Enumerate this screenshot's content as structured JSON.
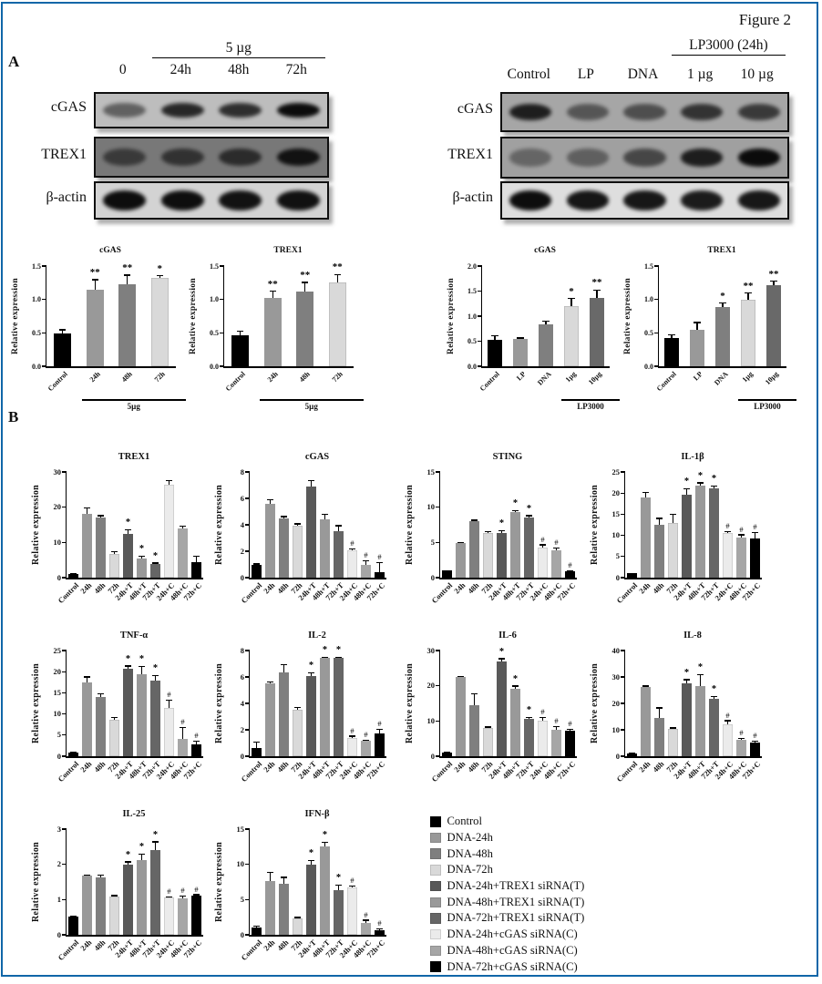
{
  "figure_label": "Figure 2",
  "panel_a": {
    "label": "A",
    "blots": [
      {
        "id": "left",
        "header": {
          "text": "5 µg",
          "span": [
            1,
            3
          ]
        },
        "lanes": [
          "0",
          "24h",
          "48h",
          "72h"
        ],
        "rows": [
          {
            "label": "cGAS",
            "bg": "#bdbdbd",
            "bands": [
              0.5,
              0.82,
              0.78,
              0.97
            ]
          },
          {
            "label": "TREX1",
            "bg": "#787878",
            "bands": [
              0.55,
              0.62,
              0.68,
              0.9
            ]
          },
          {
            "label": "β-actin",
            "bg": "#d3d3d3",
            "bands": [
              0.97,
              0.96,
              0.94,
              0.95
            ]
          }
        ]
      },
      {
        "id": "right",
        "header": {
          "text": "LP3000 (24h)",
          "span": [
            3,
            4
          ]
        },
        "lanes": [
          "Control",
          "LP",
          "DNA",
          "1 µg",
          "10 µg"
        ],
        "rows": [
          {
            "label": "cGAS",
            "bg": "#a6a6a6",
            "bands": [
              0.85,
              0.5,
              0.55,
              0.72,
              0.68
            ]
          },
          {
            "label": "TREX1",
            "bg": "#a0a0a0",
            "bands": [
              0.38,
              0.42,
              0.58,
              0.85,
              0.97
            ]
          },
          {
            "label": "β-actin",
            "bg": "#dedede",
            "bands": [
              0.97,
              0.93,
              0.92,
              0.9,
              0.92
            ]
          }
        ]
      }
    ]
  },
  "panel_b": {
    "label": "B"
  },
  "chart_data": [
    {
      "panel": "A",
      "type": "bar",
      "title": "cGAS",
      "ylabel": "Relative expression",
      "ylim": [
        0,
        1.5
      ],
      "yticks": [
        "0.0",
        "0.5",
        "1.0",
        "1.5"
      ],
      "categories": [
        "Control",
        "24h",
        "48h",
        "72h"
      ],
      "values": [
        0.49,
        1.15,
        1.23,
        1.32
      ],
      "errors": [
        0.06,
        0.15,
        0.14,
        0.04
      ],
      "sig": [
        "",
        "**",
        "**",
        "*"
      ],
      "colors": [
        "#000000",
        "#999999",
        "#7f7f7f",
        "#d9d9d9"
      ],
      "group": {
        "label": "5µg",
        "start": 1,
        "end": 3
      }
    },
    {
      "panel": "A",
      "type": "bar",
      "title": "TREX1",
      "ylabel": "Relative expression",
      "ylim": [
        0,
        1.5
      ],
      "yticks": [
        "0.0",
        "0.5",
        "1.0",
        "1.5"
      ],
      "categories": [
        "Control",
        "24h",
        "48h",
        "72h"
      ],
      "values": [
        0.46,
        1.02,
        1.12,
        1.25
      ],
      "errors": [
        0.07,
        0.11,
        0.14,
        0.13
      ],
      "sig": [
        "",
        "**",
        "**",
        "**"
      ],
      "colors": [
        "#000000",
        "#999999",
        "#7f7f7f",
        "#d9d9d9"
      ],
      "group": {
        "label": "5µg",
        "start": 1,
        "end": 3
      }
    },
    {
      "panel": "A",
      "type": "bar",
      "title": "cGAS",
      "ylabel": "Relative expression",
      "ylim": [
        0,
        2.0
      ],
      "yticks": [
        "0.0",
        "0.5",
        "1.0",
        "1.5",
        "2.0"
      ],
      "categories": [
        "Control",
        "LP",
        "DNA",
        "1µg",
        "10µg"
      ],
      "values": [
        0.53,
        0.55,
        0.84,
        1.2,
        1.37
      ],
      "errors": [
        0.08,
        0.02,
        0.07,
        0.16,
        0.16
      ],
      "sig": [
        "",
        "",
        "",
        "*",
        "**"
      ],
      "colors": [
        "#000000",
        "#999999",
        "#7f7f7f",
        "#d9d9d9",
        "#696969"
      ],
      "group": {
        "label": "LP3000",
        "start": 3,
        "end": 4
      }
    },
    {
      "panel": "A",
      "type": "bar",
      "title": "TREX1",
      "ylabel": "Relative expression",
      "ylim": [
        0,
        1.5
      ],
      "yticks": [
        "0.0",
        "0.5",
        "1.0",
        "1.5"
      ],
      "categories": [
        "Control",
        "LP",
        "DNA",
        "1µg",
        "10µg"
      ],
      "values": [
        0.42,
        0.55,
        0.89,
        1.0,
        1.22
      ],
      "errors": [
        0.06,
        0.11,
        0.06,
        0.1,
        0.06
      ],
      "sig": [
        "",
        "",
        "*",
        "**",
        "**"
      ],
      "colors": [
        "#000000",
        "#999999",
        "#7f7f7f",
        "#d9d9d9",
        "#696969"
      ],
      "group": {
        "label": "LP3000",
        "start": 3,
        "end": 4
      }
    },
    {
      "panel": "B",
      "type": "bar",
      "title": "TREX1",
      "ylabel": "Relative expression",
      "ylim": [
        0,
        30
      ],
      "yticks": [
        "0",
        "10",
        "20",
        "30"
      ],
      "categories": [
        "Control",
        "24h",
        "48h",
        "72h",
        "24h+T",
        "48h+T",
        "72h+T",
        "24h+C",
        "48h+C",
        "72h+C"
      ],
      "values": [
        1,
        18,
        17,
        6.8,
        12.5,
        5.5,
        3.8,
        26.3,
        14,
        4.3
      ],
      "errors": [
        0.2,
        1.8,
        0.7,
        0.6,
        1.2,
        0.6,
        0.4,
        1.3,
        0.7,
        1.9
      ],
      "sig": [
        "",
        "",
        "",
        "",
        "*",
        "*",
        "*",
        "",
        "",
        ""
      ],
      "colors": [
        "#000000",
        "#999999",
        "#7f7f7f",
        "#d9d9d9",
        "#595959",
        "#999999",
        "#666666",
        "#ebebeb",
        "#a6a6a6",
        "#000000"
      ],
      "group": null
    },
    {
      "panel": "B",
      "type": "bar",
      "title": "cGAS",
      "ylabel": "Relative expression",
      "ylim": [
        0,
        8
      ],
      "yticks": [
        "0",
        "2",
        "4",
        "6",
        "8"
      ],
      "categories": [
        "Control",
        "24h",
        "48h",
        "72h",
        "24h+T",
        "48h+T",
        "72h+T",
        "24h+C",
        "48h+C",
        "72h+C"
      ],
      "values": [
        1,
        5.6,
        4.5,
        3.9,
        6.9,
        4.4,
        3.5,
        2.1,
        0.95,
        0.4
      ],
      "errors": [
        0.05,
        0.3,
        0.15,
        0.2,
        0.45,
        0.4,
        0.45,
        0.12,
        0.35,
        0.75
      ],
      "sig": [
        "",
        "",
        "",
        "",
        "",
        "",
        "",
        "#",
        "#",
        "#"
      ],
      "colors": [
        "#000000",
        "#999999",
        "#7f7f7f",
        "#d9d9d9",
        "#595959",
        "#999999",
        "#666666",
        "#ebebeb",
        "#a6a6a6",
        "#000000"
      ],
      "group": null
    },
    {
      "panel": "B",
      "type": "bar",
      "title": "STING",
      "ylabel": "Relative expression",
      "ylim": [
        0,
        15
      ],
      "yticks": [
        "0",
        "5",
        "10",
        "15"
      ],
      "categories": [
        "Control",
        "24h",
        "48h",
        "72h",
        "24h+T",
        "48h+T",
        "72h+T",
        "24h+C",
        "48h+C",
        "72h+C"
      ],
      "values": [
        1,
        4.9,
        8,
        6.4,
        6.4,
        9.3,
        8.5,
        4.3,
        3.9,
        0.9
      ],
      "errors": [
        0.05,
        0.12,
        0.2,
        0.15,
        0.3,
        0.25,
        0.35,
        0.4,
        0.35,
        0.15
      ],
      "sig": [
        "",
        "",
        "",
        "",
        "*",
        "*",
        "*",
        "#",
        "#",
        "#"
      ],
      "colors": [
        "#000000",
        "#999999",
        "#7f7f7f",
        "#d9d9d9",
        "#595959",
        "#999999",
        "#666666",
        "#ebebeb",
        "#a6a6a6",
        "#000000"
      ],
      "group": null
    },
    {
      "panel": "B",
      "type": "bar",
      "title": "IL-1β",
      "ylabel": "Relative expression",
      "ylim": [
        0,
        25
      ],
      "yticks": [
        "0",
        "5",
        "10",
        "15",
        "20",
        "25"
      ],
      "categories": [
        "Control",
        "24h",
        "48h",
        "72h",
        "24h+T",
        "48h+T",
        "72h+T",
        "24h+C",
        "48h+C",
        "72h+C"
      ],
      "values": [
        1,
        19,
        12.6,
        12.9,
        19.6,
        21.8,
        21.1,
        10.6,
        9.5,
        9.2
      ],
      "errors": [
        0.1,
        1.2,
        1.5,
        2.1,
        1.5,
        0.7,
        0.6,
        0.4,
        0.7,
        1.5
      ],
      "sig": [
        "",
        "",
        "",
        "",
        "*",
        "*",
        "*",
        "#",
        "#",
        "#"
      ],
      "colors": [
        "#000000",
        "#999999",
        "#7f7f7f",
        "#d9d9d9",
        "#595959",
        "#999999",
        "#666666",
        "#ebebeb",
        "#a6a6a6",
        "#000000"
      ],
      "group": null
    },
    {
      "panel": "B",
      "type": "bar",
      "title": "TNF-α",
      "ylabel": "Relative expression",
      "ylim": [
        0,
        25
      ],
      "yticks": [
        "0",
        "5",
        "10",
        "15",
        "20",
        "25"
      ],
      "categories": [
        "Control",
        "24h",
        "48h",
        "72h",
        "24h+T",
        "48h+T",
        "72h+T",
        "24h+C",
        "48h+C",
        "72h+C"
      ],
      "values": [
        0.9,
        17.5,
        14.1,
        8.6,
        20.6,
        19.5,
        17.9,
        11.5,
        4.2,
        2.8
      ],
      "errors": [
        0.15,
        1.3,
        0.8,
        0.7,
        0.8,
        1.8,
        1.2,
        1.8,
        2.7,
        0.8
      ],
      "sig": [
        "",
        "",
        "",
        "",
        "*",
        "*",
        "*",
        "#",
        "#",
        "#"
      ],
      "colors": [
        "#000000",
        "#999999",
        "#7f7f7f",
        "#d9d9d9",
        "#595959",
        "#999999",
        "#666666",
        "#ebebeb",
        "#a6a6a6",
        "#000000"
      ],
      "group": null
    },
    {
      "panel": "B",
      "type": "bar",
      "title": "IL-2",
      "ylabel": "Relative expression",
      "ylim": [
        0,
        8
      ],
      "yticks": [
        "0",
        "2",
        "4",
        "6",
        "8"
      ],
      "categories": [
        "Control",
        "24h",
        "48h",
        "72h",
        "24h+T",
        "48h+T",
        "72h+T",
        "24h+C",
        "48h+C",
        "72h+C"
      ],
      "values": [
        0.65,
        5.55,
        6.35,
        3.5,
        6.1,
        7.45,
        7.45,
        1.4,
        1.15,
        1.75
      ],
      "errors": [
        0.45,
        0.1,
        0.6,
        0.2,
        0.25,
        0.08,
        0.08,
        0.15,
        0.1,
        0.3
      ],
      "sig": [
        "",
        "",
        "",
        "",
        "*",
        "*",
        "*",
        "#",
        "#",
        "#"
      ],
      "colors": [
        "#000000",
        "#999999",
        "#7f7f7f",
        "#d9d9d9",
        "#595959",
        "#999999",
        "#666666",
        "#ebebeb",
        "#a6a6a6",
        "#000000"
      ],
      "group": null
    },
    {
      "panel": "B",
      "type": "bar",
      "title": "IL-6",
      "ylabel": "Relative expression",
      "ylim": [
        0,
        30
      ],
      "yticks": [
        "0",
        "10",
        "20",
        "30"
      ],
      "categories": [
        "Control",
        "24h",
        "48h",
        "72h",
        "24h+T",
        "48h+T",
        "72h+T",
        "24h+C",
        "48h+C",
        "72h+C"
      ],
      "values": [
        1.1,
        22.4,
        14.6,
        7.9,
        27,
        19.1,
        10.6,
        10.1,
        7.6,
        7.2
      ],
      "errors": [
        0.2,
        0.3,
        3.3,
        0.5,
        0.8,
        0.9,
        0.4,
        0.9,
        0.9,
        0.5
      ],
      "sig": [
        "",
        "",
        "",
        "",
        "*",
        "*",
        "*",
        "#",
        "#",
        "#"
      ],
      "colors": [
        "#000000",
        "#999999",
        "#7f7f7f",
        "#d9d9d9",
        "#595959",
        "#999999",
        "#666666",
        "#ebebeb",
        "#a6a6a6",
        "#000000"
      ],
      "group": null
    },
    {
      "panel": "B",
      "type": "bar",
      "title": "IL-8",
      "ylabel": "Relative expression",
      "ylim": [
        0,
        40
      ],
      "yticks": [
        "0",
        "10",
        "20",
        "30",
        "40"
      ],
      "categories": [
        "Control",
        "24h",
        "48h",
        "72h",
        "24h+T",
        "48h+T",
        "72h+T",
        "24h+C",
        "48h+C",
        "72h+C"
      ],
      "values": [
        0.9,
        26.3,
        14.6,
        10.4,
        27.6,
        26.7,
        21.6,
        12.1,
        6.3,
        5.2
      ],
      "errors": [
        0.3,
        0.4,
        3.8,
        0.4,
        1.5,
        4.4,
        1.2,
        1.5,
        0.6,
        0.5
      ],
      "sig": [
        "",
        "",
        "",
        "",
        "*",
        "*",
        "*",
        "#",
        "#",
        "#"
      ],
      "colors": [
        "#000000",
        "#999999",
        "#7f7f7f",
        "#d9d9d9",
        "#595959",
        "#999999",
        "#666666",
        "#ebebeb",
        "#a6a6a6",
        "#000000"
      ],
      "group": null
    },
    {
      "panel": "B",
      "type": "bar",
      "title": "IL-25",
      "ylabel": "Relative expression",
      "ylim": [
        0,
        3
      ],
      "yticks": [
        "0",
        "1",
        "2",
        "3"
      ],
      "categories": [
        "Control",
        "24h",
        "48h",
        "72h",
        "24h+T",
        "48h+T",
        "72h+T",
        "24h+C",
        "48h+C",
        "72h+C"
      ],
      "values": [
        0.52,
        1.67,
        1.63,
        1.08,
        1.99,
        2.13,
        2.41,
        1.05,
        1.04,
        1.1
      ],
      "errors": [
        0.02,
        0.04,
        0.08,
        0.04,
        0.09,
        0.16,
        0.24,
        0.04,
        0.06,
        0.05
      ],
      "sig": [
        "",
        "",
        "",
        "",
        "*",
        "*",
        "*",
        "#",
        "#",
        "#"
      ],
      "colors": [
        "#000000",
        "#999999",
        "#7f7f7f",
        "#d9d9d9",
        "#595959",
        "#999999",
        "#666666",
        "#ebebeb",
        "#a6a6a6",
        "#000000"
      ],
      "group": null
    },
    {
      "panel": "B",
      "type": "bar",
      "title": "IFN-β",
      "ylabel": "Relative expression",
      "ylim": [
        0,
        15
      ],
      "yticks": [
        "0",
        "5",
        "10",
        "15"
      ],
      "categories": [
        "Control",
        "24h",
        "48h",
        "72h",
        "24h+T",
        "48h+T",
        "72h+T",
        "24h+C",
        "48h+C",
        "72h+C"
      ],
      "values": [
        1,
        7.6,
        7.3,
        2.3,
        9.9,
        12.6,
        6.4,
        6.7,
        1.7,
        0.6
      ],
      "errors": [
        0.25,
        1.3,
        0.9,
        0.2,
        0.7,
        0.6,
        0.7,
        0.3,
        0.4,
        0.3
      ],
      "sig": [
        "",
        "",
        "",
        "",
        "*",
        "*",
        "*",
        "#",
        "#",
        "#"
      ],
      "colors": [
        "#000000",
        "#999999",
        "#7f7f7f",
        "#d9d9d9",
        "#595959",
        "#999999",
        "#666666",
        "#ebebeb",
        "#a6a6a6",
        "#000000"
      ],
      "group": null
    }
  ],
  "legend": {
    "entries": [
      {
        "label": "Control",
        "color": "#000000"
      },
      {
        "label": "DNA-24h",
        "color": "#999999"
      },
      {
        "label": "DNA-48h",
        "color": "#7f7f7f"
      },
      {
        "label": "DNA-72h",
        "color": "#d9d9d9"
      },
      {
        "label": "DNA-24h+TREX1 siRNA(T)",
        "color": "#595959"
      },
      {
        "label": "DNA-48h+TREX1 siRNA(T)",
        "color": "#999999"
      },
      {
        "label": "DNA-72h+TREX1 siRNA(T)",
        "color": "#666666"
      },
      {
        "label": "DNA-24h+cGAS siRNA(C)",
        "color": "#ebebeb"
      },
      {
        "label": "DNA-48h+cGAS siRNA(C)",
        "color": "#a6a6a6"
      },
      {
        "label": "DNA-72h+cGAS siRNA(C)",
        "color": "#000000"
      }
    ]
  }
}
